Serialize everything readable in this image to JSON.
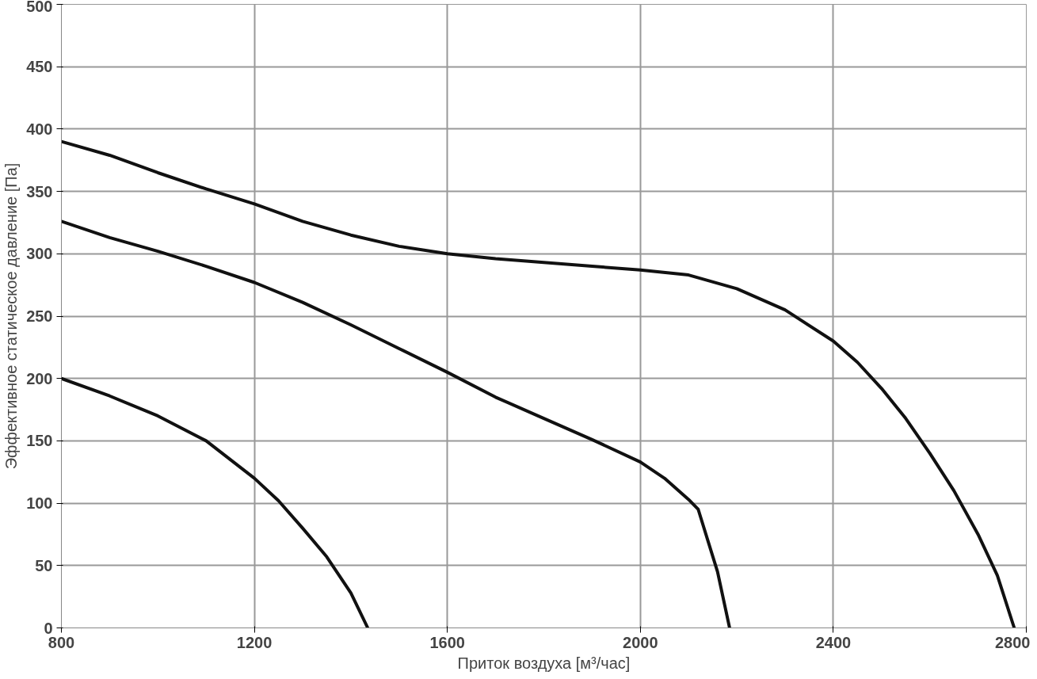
{
  "chart_data": {
    "type": "line",
    "xlabel": "Приток воздуха [м³/час]",
    "ylabel": "Эффективное статическое давление [Па]",
    "xlim": [
      800,
      2800
    ],
    "xticks": [
      800,
      1200,
      1600,
      2000,
      2400,
      2800
    ],
    "ylim": [
      0,
      500
    ],
    "yticks": [
      0,
      50,
      100,
      150,
      200,
      250,
      300,
      350,
      400,
      450,
      500
    ],
    "grid": true,
    "marker": "none",
    "line_style": "solid",
    "series": [
      {
        "color": "#111111",
        "x": [
          800,
          900,
          1000,
          1100,
          1200,
          1300,
          1400,
          1500,
          1600,
          1700,
          1800,
          1900,
          2000,
          2100,
          2200,
          2300,
          2400,
          2450,
          2500,
          2550,
          2600,
          2650,
          2700,
          2740,
          2775
        ],
        "values": [
          390,
          379,
          365,
          352,
          340,
          326,
          315,
          306,
          300,
          296,
          293,
          290,
          287,
          283,
          272,
          255,
          230,
          213,
          192,
          168,
          140,
          110,
          75,
          42,
          0
        ]
      },
      {
        "color": "#111111",
        "x": [
          800,
          900,
          1000,
          1100,
          1200,
          1300,
          1400,
          1500,
          1600,
          1700,
          1800,
          1900,
          2000,
          2050,
          2100,
          2120,
          2140,
          2160,
          2185
        ],
        "values": [
          326,
          313,
          302,
          290,
          277,
          261,
          243,
          224,
          205,
          185,
          168,
          151,
          133,
          120,
          103,
          95,
          70,
          45,
          0
        ]
      },
      {
        "color": "#111111",
        "x": [
          800,
          900,
          1000,
          1100,
          1200,
          1250,
          1300,
          1350,
          1400,
          1435
        ],
        "values": [
          200,
          186,
          170,
          150,
          120,
          102,
          80,
          57,
          28,
          0
        ]
      }
    ]
  }
}
